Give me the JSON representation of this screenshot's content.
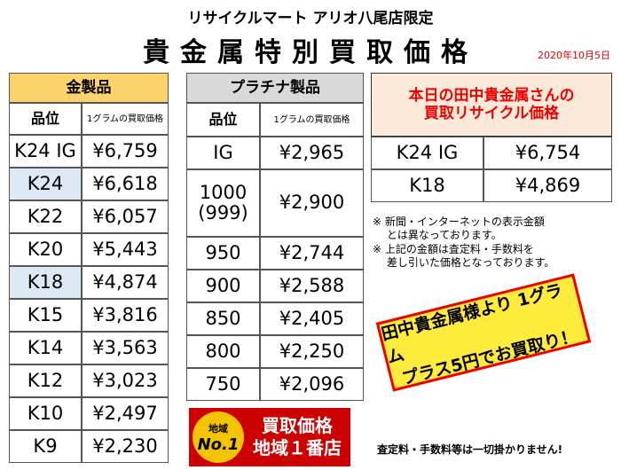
{
  "header": {
    "store": "リサイクルマート アリオ八尾店限定",
    "title": "貴金属特別買取価格",
    "date": "2020年10月5日"
  },
  "gold": {
    "title": "金製品",
    "columns": [
      "品位",
      "1グラムの買取価格"
    ],
    "rows": [
      [
        "K24 IG",
        "¥6,759"
      ],
      [
        "K24",
        "¥6,618"
      ],
      [
        "K22",
        "¥6,057"
      ],
      [
        "K20",
        "¥5,443"
      ],
      [
        "K18",
        "¥4,874"
      ],
      [
        "K15",
        "¥3,816"
      ],
      [
        "K14",
        "¥3,563"
      ],
      [
        "K12",
        "¥3,023"
      ],
      [
        "K10",
        "¥2,497"
      ],
      [
        "K9",
        "¥2,230"
      ]
    ]
  },
  "platinum": {
    "title": "プラチナ製品",
    "columns": [
      "品位",
      "1グラムの買取価格"
    ],
    "rows": [
      [
        "IG",
        "¥2,965"
      ],
      [
        "1000\n(999)",
        "¥2,900"
      ],
      [
        "950",
        "¥2,744"
      ],
      [
        "900",
        "¥2,588"
      ],
      [
        "850",
        "¥2,405"
      ],
      [
        "800",
        "¥2,250"
      ],
      [
        "750",
        "¥2,096"
      ]
    ]
  },
  "tanaka": {
    "title": "本日の田中貴金属さんの\n買取リサイクル価格",
    "rows": [
      [
        "K24 IG",
        "¥6,754"
      ],
      [
        "K18",
        "¥4,869"
      ]
    ]
  },
  "notes": [
    "※ 新聞・インターネットの表示金額\n　 とは異なっております。",
    "※ 上記の金額は査定料・手数料を\n　 差し引いた価格となっております。"
  ],
  "promo": [
    "田中貴金属様より 1グラム",
    "プラス5円でお買取り！"
  ],
  "badge": {
    "region": "地域",
    "no1": "No.1",
    "line1": "買取価格",
    "line2": "地域１番店"
  },
  "footer": "査定料・手数料等は一切掛かりません!"
}
